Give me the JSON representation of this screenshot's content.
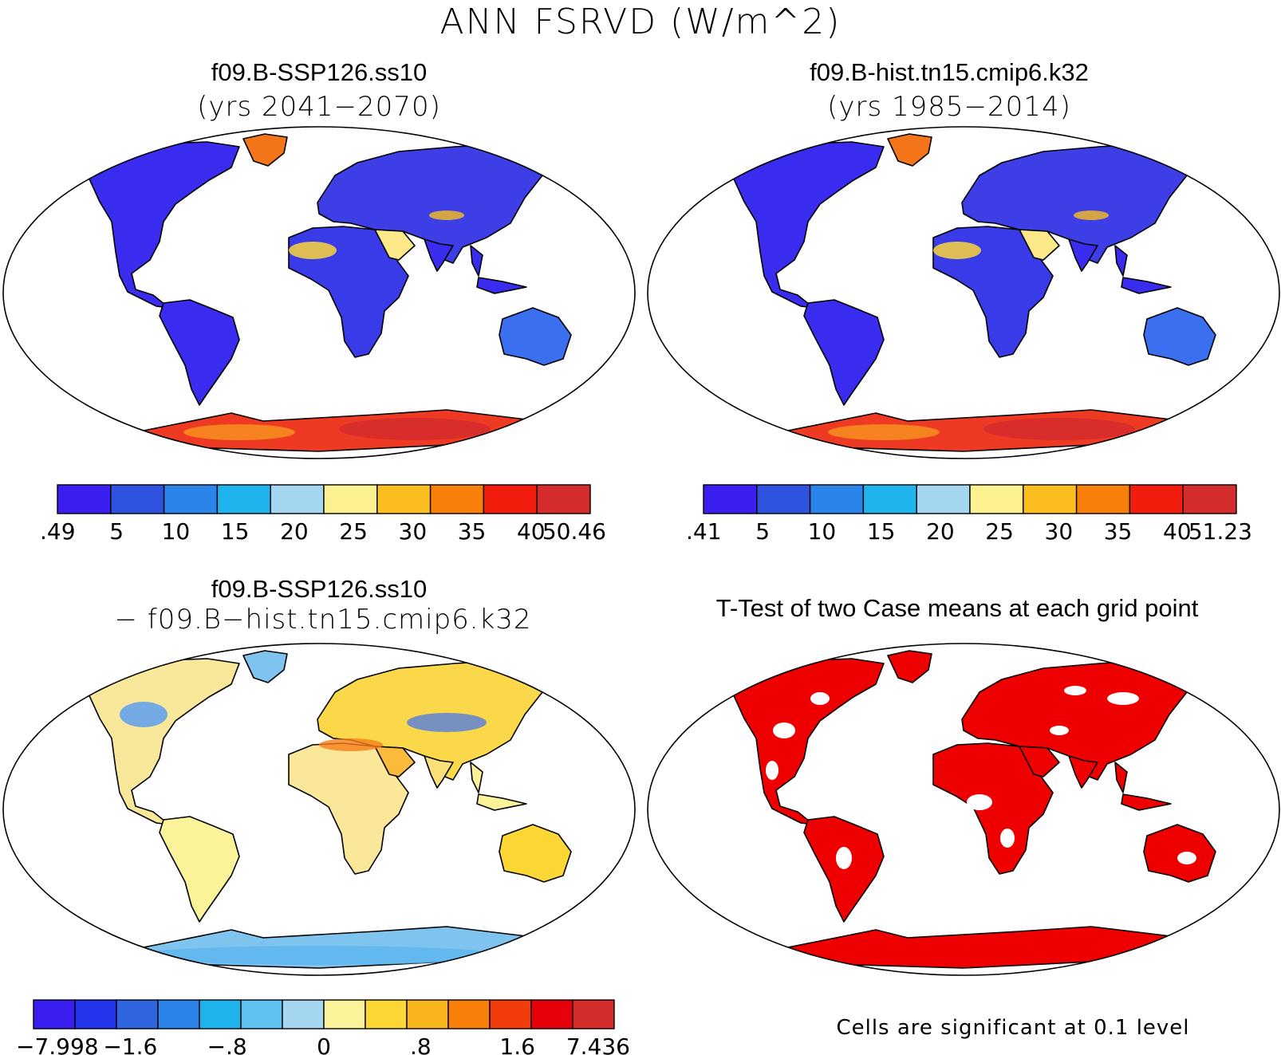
{
  "figure": {
    "title": "ANN FSRVD (W/m^2)"
  },
  "colors": {
    "ocean": "#ffffff",
    "coast": "#000000",
    "sig": "#ee0000"
  },
  "panels": {
    "p1": {
      "title": "f09.B-SSP126.ss10",
      "subtitle": "(yrs 2041−2070)",
      "map_type": "absolute",
      "colorbar": {
        "colors": [
          "#3a1ff0",
          "#2f53df",
          "#2a84ea",
          "#1fb4ee",
          "#a4d6ef",
          "#fbf18e",
          "#fbbe1e",
          "#f8800a",
          "#f21c0c",
          "#d42c2c"
        ],
        "labels": [
          ".49",
          "5",
          "10",
          "15",
          "20",
          "25",
          "30",
          "35",
          "40",
          "50.46"
        ]
      }
    },
    "p2": {
      "title": "f09.B-hist.tn15.cmip6.k32",
      "subtitle": "(yrs 1985−2014)",
      "map_type": "absolute",
      "colorbar": {
        "colors": [
          "#3a1ff0",
          "#2f53df",
          "#2a84ea",
          "#1fb4ee",
          "#a4d6ef",
          "#fbf18e",
          "#fbbe1e",
          "#f8800a",
          "#f21c0c",
          "#d42c2c"
        ],
        "labels": [
          ".41",
          "5",
          "10",
          "15",
          "20",
          "25",
          "30",
          "35",
          "40",
          "51.23"
        ]
      }
    },
    "p3": {
      "title": "f09.B-SSP126.ss10",
      "subtitle": "− f09.B−hist.tn15.cmip6.k32",
      "map_type": "difference",
      "colorbar": {
        "colors": [
          "#3a1ff0",
          "#2335ea",
          "#2f65df",
          "#2a84ea",
          "#1fb4ee",
          "#5dc2ef",
          "#a4d6ef",
          "#fbf39a",
          "#fbd735",
          "#fbb51c",
          "#f8800a",
          "#f23c0a",
          "#e5000c",
          "#d42c2c"
        ],
        "labels": [
          "−7.998",
          "−1.6",
          "−.8",
          "0",
          ".8",
          "1.6",
          "7.436"
        ]
      }
    },
    "p4": {
      "title": "T-Test of two Case means at each grid point",
      "map_type": "significance",
      "note": "Cells are significant at 0.1 level"
    }
  }
}
